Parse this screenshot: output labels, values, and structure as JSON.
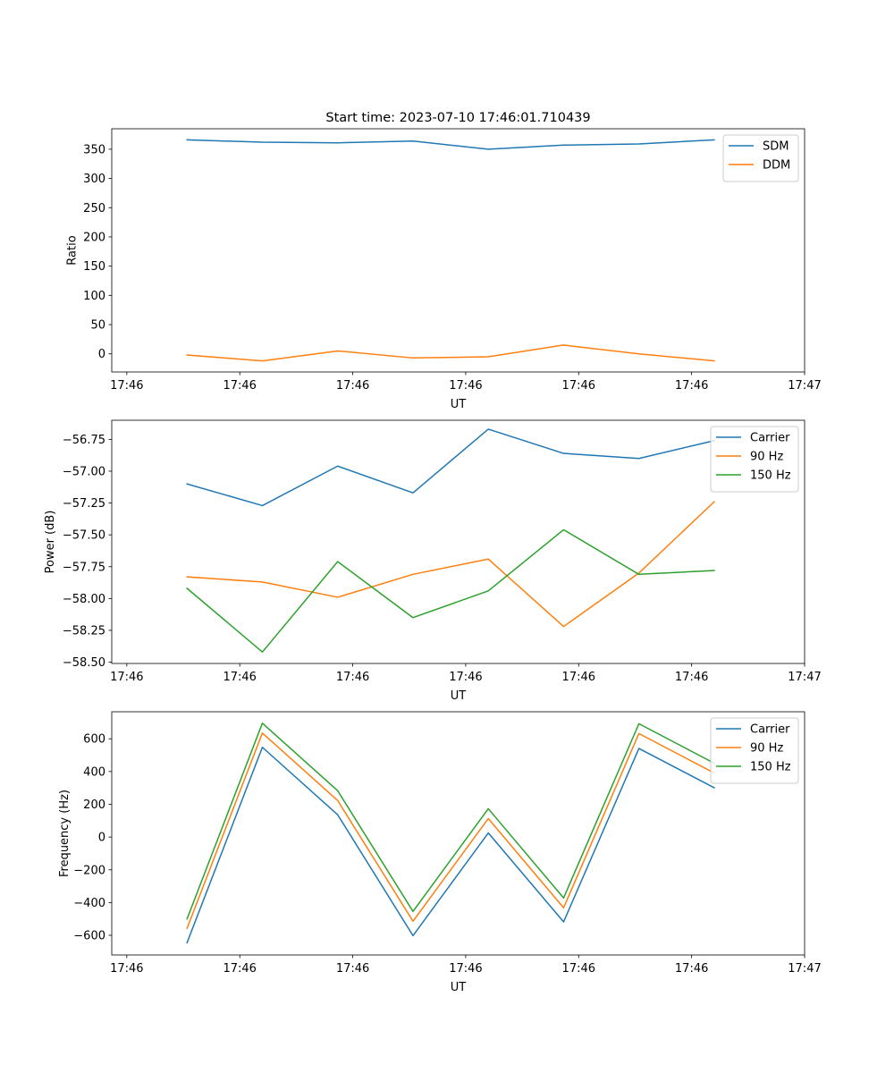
{
  "title": "Start time: 2023-07-10 17:46:01.710439",
  "colors": {
    "c0": "#1f77b4",
    "c1": "#ff7f0e",
    "c2": "#2ca02c"
  },
  "chart_data": [
    {
      "type": "line",
      "xlabel": "UT",
      "ylabel": "Ratio",
      "xlim": [
        0,
        9.2
      ],
      "ylim": [
        -31,
        385
      ],
      "xticks": [
        0.2,
        1.7,
        3.2,
        4.7,
        6.2,
        7.7,
        9.2
      ],
      "xtick_labels": [
        "17:46",
        "17:46",
        "17:46",
        "17:46",
        "17:46",
        "17:46",
        "17:47"
      ],
      "yticks": [
        0,
        50,
        100,
        150,
        200,
        250,
        300,
        350
      ],
      "ytick_labels": [
        "0",
        "50",
        "100",
        "150",
        "200",
        "250",
        "300",
        "350"
      ],
      "x": [
        1,
        2,
        3,
        4,
        5,
        6,
        7,
        8
      ],
      "series": [
        {
          "name": "SDM",
          "values": [
            366,
            362,
            361,
            364,
            350,
            357,
            359,
            366
          ]
        },
        {
          "name": "DDM",
          "values": [
            -2,
            -12,
            5,
            -7,
            -5,
            15,
            0,
            -12
          ]
        }
      ],
      "legend": "top-right"
    },
    {
      "type": "line",
      "xlabel": "UT",
      "ylabel": "Power (dB)",
      "xlim": [
        0,
        9.2
      ],
      "ylim": [
        -58.51,
        -56.6
      ],
      "xticks": [
        0.2,
        1.7,
        3.2,
        4.7,
        6.2,
        7.7,
        9.2
      ],
      "xtick_labels": [
        "17:46",
        "17:46",
        "17:46",
        "17:46",
        "17:46",
        "17:46",
        "17:47"
      ],
      "yticks": [
        -58.5,
        -58.25,
        -58.0,
        -57.75,
        -57.5,
        -57.25,
        -57.0,
        -56.75
      ],
      "ytick_labels": [
        "−58.50",
        "−58.25",
        "−58.00",
        "−57.75",
        "−57.50",
        "−57.25",
        "−57.00",
        "−56.75"
      ],
      "x": [
        1,
        2,
        3,
        4,
        5,
        6,
        7,
        8
      ],
      "series": [
        {
          "name": "Carrier",
          "values": [
            -57.1,
            -57.27,
            -56.96,
            -57.17,
            -56.67,
            -56.86,
            -56.9,
            -56.76
          ]
        },
        {
          "name": "90 Hz",
          "values": [
            -57.83,
            -57.87,
            -57.99,
            -57.81,
            -57.69,
            -58.22,
            -57.8,
            -57.24
          ]
        },
        {
          "name": "150 Hz",
          "values": [
            -57.92,
            -58.42,
            -57.71,
            -58.15,
            -57.94,
            -57.46,
            -57.81,
            -57.78
          ]
        }
      ],
      "legend": "top-right"
    },
    {
      "type": "line",
      "xlabel": "UT",
      "ylabel": "Frequency (Hz)",
      "xlim": [
        0,
        9.2
      ],
      "ylim": [
        -720,
        765
      ],
      "xticks": [
        0.2,
        1.7,
        3.2,
        4.7,
        6.2,
        7.7,
        9.2
      ],
      "xtick_labels": [
        "17:46",
        "17:46",
        "17:46",
        "17:46",
        "17:46",
        "17:46",
        "17:47"
      ],
      "yticks": [
        -600,
        -400,
        -200,
        0,
        200,
        400,
        600
      ],
      "ytick_labels": [
        "−600",
        "−400",
        "−200",
        "0",
        "200",
        "400",
        "600"
      ],
      "x": [
        1,
        2,
        3,
        4,
        5,
        6,
        7,
        8
      ],
      "series": [
        {
          "name": "Carrier",
          "values": [
            -645,
            548,
            136,
            -602,
            25,
            -518,
            541,
            301
          ]
        },
        {
          "name": "90 Hz",
          "values": [
            -557,
            635,
            223,
            -514,
            113,
            -432,
            632,
            391
          ]
        },
        {
          "name": "150 Hz",
          "values": [
            -500,
            695,
            283,
            -454,
            173,
            -372,
            692,
            451
          ]
        }
      ],
      "legend": "top-right"
    }
  ]
}
